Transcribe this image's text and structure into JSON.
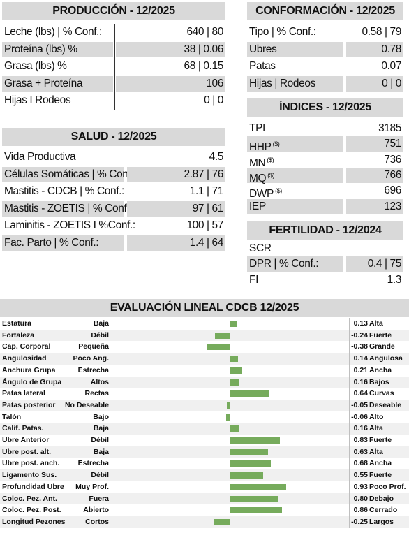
{
  "produccion": {
    "title": "PRODUCCIÓN - 12/2025",
    "rows": [
      {
        "label": "Leche (lbs) | % Conf.:",
        "value": "640 | 80"
      },
      {
        "label": "Proteína (lbs) %",
        "value": "38 | 0.06"
      },
      {
        "label": "Grasa (lbs) %",
        "value": "68 | 0.15"
      },
      {
        "label": "Grasa + Proteína",
        "value": "106"
      },
      {
        "label": "Hijas I Rodeos",
        "value": "0 | 0"
      }
    ]
  },
  "salud": {
    "title": "SALUD - 12/2025",
    "rows": [
      {
        "label": "Vida Productiva",
        "value": "4.5"
      },
      {
        "label": "Células Somáticas | % Conf.:",
        "value": "2.87 | 76"
      },
      {
        "label": "Mastitis - CDCB | % Conf.:",
        "value": "1.1 | 71"
      },
      {
        "label": "Mastitis - ZOETIS | % Conf.:",
        "value": "97 | 61"
      },
      {
        "label": "Laminitis - ZOETIS I %Conf.:",
        "value": "100  | 57"
      },
      {
        "label": "Fac. Parto | % Conf.:",
        "value": "1.4  | 64"
      }
    ]
  },
  "conformacion": {
    "title": "CONFORMACIÓN - 12/2025",
    "rows": [
      {
        "label": "Tipo | % Conf.:",
        "value": "0.58 | 79"
      },
      {
        "label": "Ubres",
        "value": "0.78"
      },
      {
        "label": "Patas",
        "value": "0.07"
      },
      {
        "label": "Hijas | Rodeos",
        "value": "0 | 0"
      }
    ]
  },
  "indices": {
    "title": "ÍNDICES - 12/2025",
    "rows": [
      {
        "label": "TPI",
        "sup": "",
        "value": "3185"
      },
      {
        "label": "HHP",
        "sup": "($)",
        "value": "751"
      },
      {
        "label": "MN",
        "sup": "($)",
        "value": "736"
      },
      {
        "label": "MQ",
        "sup": "($)",
        "value": "766"
      },
      {
        "label": "DWP",
        "sup": "($)",
        "value": "696"
      },
      {
        "label": "IEP",
        "sup": "",
        "value": "123"
      }
    ]
  },
  "fertilidad": {
    "title": "FERTILIDAD - 12/2024",
    "rows": [
      {
        "label": "SCR",
        "value": ""
      },
      {
        "label": "DPR | % Conf.:",
        "value": "0.4 | 75"
      },
      {
        "label": "FI",
        "value": "1.3"
      }
    ]
  },
  "evaluacion": {
    "title": "EVALUACIÓN LINEAL CDCB 12/2025",
    "bar_color": "#76ab5c",
    "rows": [
      {
        "trait": "Estatura",
        "low": "Baja",
        "value": 0.13,
        "value_text": "0.13",
        "high": "Alta"
      },
      {
        "trait": "Fortaleza",
        "low": "Débil",
        "value": -0.24,
        "value_text": "-0.24",
        "high": "Fuerte"
      },
      {
        "trait": "Cap. Corporal",
        "low": "Pequeña",
        "value": -0.38,
        "value_text": "-0.38",
        "high": "Grande"
      },
      {
        "trait": "Angulosidad",
        "low": "Poco Ang.",
        "value": 0.14,
        "value_text": "0.14",
        "high": "Angulosa"
      },
      {
        "trait": "Anchura Grupa",
        "low": "Estrecha",
        "value": 0.21,
        "value_text": "0.21",
        "high": "Ancha"
      },
      {
        "trait": "Ángulo de Grupa",
        "low": "Altos",
        "value": 0.16,
        "value_text": "0.16",
        "high": "Bajos"
      },
      {
        "trait": "Patas lateral",
        "low": "Rectas",
        "value": 0.64,
        "value_text": "0.64",
        "high": "Curvas"
      },
      {
        "trait": "Patas posterior",
        "low": "No Deseable",
        "value": -0.05,
        "value_text": "-0.05",
        "high": "Deseable"
      },
      {
        "trait": "Talón",
        "low": "Bajo",
        "value": -0.06,
        "value_text": "-0.06",
        "high": "Alto"
      },
      {
        "trait": "Calif. Patas.",
        "low": "Baja",
        "value": 0.16,
        "value_text": "0.16",
        "high": "Alta"
      },
      {
        "trait": "Ubre Anterior",
        "low": "Débil",
        "value": 0.83,
        "value_text": "0.83",
        "high": "Fuerte"
      },
      {
        "trait": "Ubre post. alt.",
        "low": "Baja",
        "value": 0.63,
        "value_text": "0.63",
        "high": "Alta"
      },
      {
        "trait": "Ubre post. anch.",
        "low": "Estrecha",
        "value": 0.68,
        "value_text": "0.68",
        "high": "Ancha"
      },
      {
        "trait": "Ligamento Sus.",
        "low": "Débil",
        "value": 0.55,
        "value_text": "0.55",
        "high": "Fuerte"
      },
      {
        "trait": "Profundidad Ubre",
        "low": "Muy Prof.",
        "value": 0.93,
        "value_text": "0.93",
        "high": "Poco Prof."
      },
      {
        "trait": "Coloc. Pez. Ant.",
        "low": "Fuera",
        "value": 0.8,
        "value_text": "0.80",
        "high": "Debajo"
      },
      {
        "trait": "Coloc. Pez. Post.",
        "low": "Abierto",
        "value": 0.86,
        "value_text": "0.86",
        "high": "Cerrado"
      },
      {
        "trait": "Longitud Pezones",
        "low": "Cortos",
        "value": -0.25,
        "value_text": "-0.25",
        "high": "Largos"
      }
    ]
  }
}
